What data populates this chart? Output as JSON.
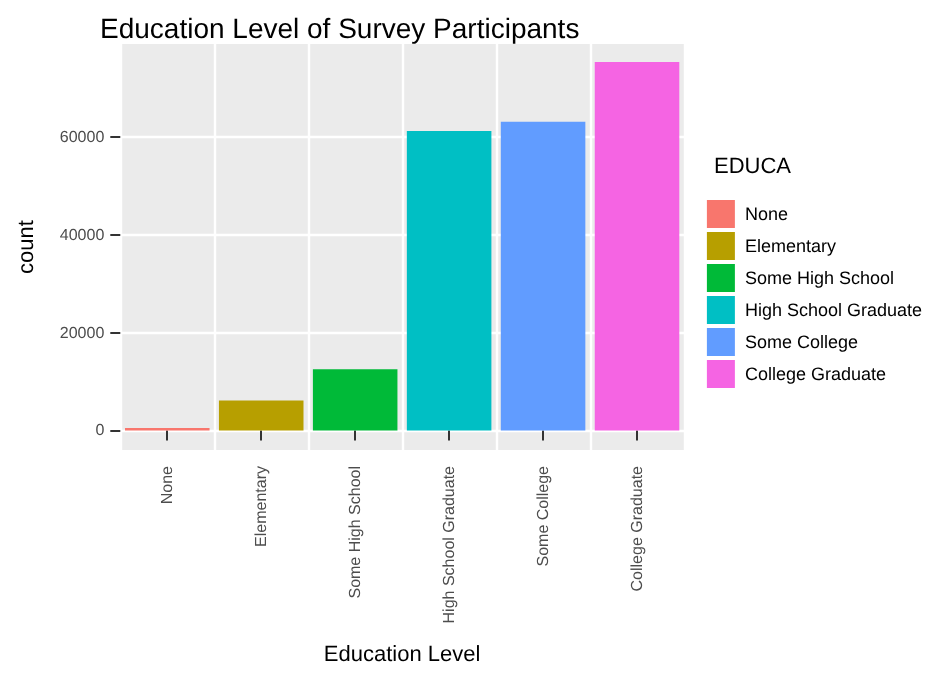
{
  "chart_data": {
    "type": "bar",
    "title": "Education Level of Survey Participants",
    "xlabel": "Education Level",
    "ylabel": "count",
    "legend_title": "EDUCA",
    "categories": [
      "None",
      "Elementary",
      "Some High School",
      "High School Graduate",
      "Some College",
      "College Graduate"
    ],
    "series": [
      {
        "name": "None",
        "color": "#f8766d",
        "values": [
          500,
          null,
          null,
          null,
          null,
          null
        ]
      },
      {
        "name": "Elementary",
        "color": "#b79f00",
        "values": [
          null,
          6100,
          null,
          null,
          null,
          null
        ]
      },
      {
        "name": "Some High School",
        "color": "#00ba38",
        "values": [
          null,
          null,
          12500,
          null,
          null,
          null
        ]
      },
      {
        "name": "High School Graduate",
        "color": "#00bfc4",
        "values": [
          null,
          null,
          null,
          61200,
          null,
          null
        ]
      },
      {
        "name": "Some College",
        "color": "#619cff",
        "values": [
          null,
          null,
          null,
          null,
          63100,
          null
        ]
      },
      {
        "name": "College Graduate",
        "color": "#f564e3",
        "values": [
          null,
          null,
          null,
          null,
          null,
          75300
        ]
      }
    ],
    "ylim": [
      -4000,
      79000
    ],
    "yticks": [
      0,
      20000,
      40000,
      60000
    ],
    "grid": true,
    "legend": "right"
  }
}
